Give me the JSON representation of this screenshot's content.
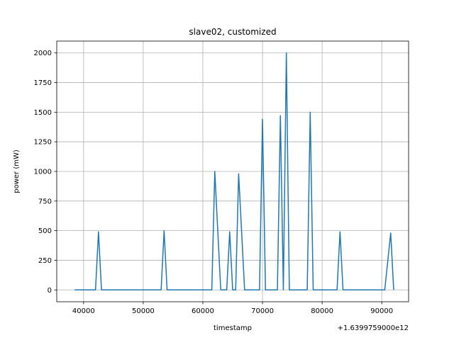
{
  "chart_data": {
    "type": "line",
    "title": "slave02, customized",
    "xlabel": "timestamp",
    "ylabel": "power (mW)",
    "offset_label": "+1.6399759000e12",
    "xlim": [
      35500,
      94500
    ],
    "ylim": [
      -100,
      2100
    ],
    "xticks": [
      40000,
      50000,
      60000,
      70000,
      80000,
      90000
    ],
    "xtick_labels": [
      "40000",
      "50000",
      "60000",
      "70000",
      "80000",
      "90000"
    ],
    "yticks": [
      0,
      250,
      500,
      750,
      1000,
      1250,
      1500,
      1750,
      2000
    ],
    "ytick_labels": [
      "0",
      "250",
      "500",
      "750",
      "1000",
      "1250",
      "1500",
      "1750",
      "2000"
    ],
    "grid": true,
    "series": [
      {
        "color": "#1f77b4",
        "x": [
          38500,
          42000,
          42500,
          43000,
          53000,
          53500,
          54000,
          61500,
          62000,
          62500,
          63000,
          64000,
          64500,
          65000,
          65500,
          66000,
          67000,
          69500,
          70000,
          70500,
          72500,
          73000,
          73500,
          74000,
          74500,
          77500,
          78000,
          78500,
          82500,
          83000,
          83500,
          90500,
          91500,
          92000
        ],
        "y": [
          0,
          0,
          490,
          0,
          0,
          500,
          0,
          0,
          1000,
          500,
          0,
          0,
          490,
          0,
          0,
          980,
          0,
          0,
          1440,
          0,
          0,
          1470,
          0,
          2000,
          0,
          0,
          1500,
          0,
          0,
          490,
          0,
          0,
          480,
          0
        ]
      }
    ]
  }
}
